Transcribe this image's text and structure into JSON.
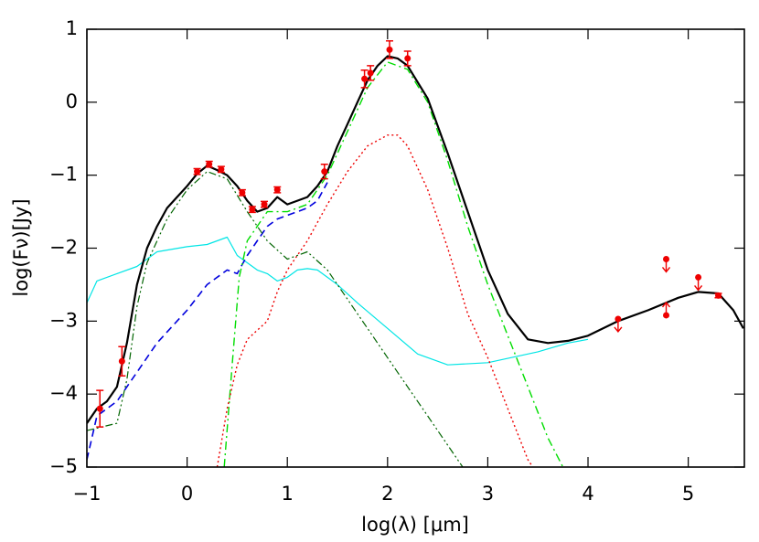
{
  "chart_data": {
    "type": "line",
    "xlabel": "log(λ) [μm]",
    "ylabel": "log(Fν)[Jy]",
    "xlim": [
      -1,
      5.56
    ],
    "ylim": [
      -5,
      1
    ],
    "xticks": [
      {
        "value": -1,
        "label": "−1"
      },
      0,
      1,
      2,
      3,
      4,
      5
    ],
    "yticks": [
      {
        "value": -5,
        "label": "−5"
      },
      {
        "value": -4,
        "label": "−4"
      },
      {
        "value": -3,
        "label": "−3"
      },
      {
        "value": -2,
        "label": "−2"
      },
      {
        "value": -1,
        "label": "−1"
      },
      0,
      1
    ],
    "series": [
      {
        "type": "line",
        "color": "#00e5e5",
        "dash": "",
        "width": 1.2,
        "x": [
          -1,
          -0.9,
          -0.7,
          -0.5,
          -0.3,
          0,
          0.2,
          0.4,
          0.5,
          0.6,
          0.7,
          0.8,
          0.9,
          1.0,
          1.1,
          1.2,
          1.3,
          1.5,
          1.7,
          2.0,
          2.3,
          2.6,
          3.0,
          3.5,
          3.8,
          4.0
        ],
        "values": [
          -2.75,
          -2.45,
          -2.35,
          -2.25,
          -2.05,
          -1.98,
          -1.95,
          -1.85,
          -2.1,
          -2.2,
          -2.3,
          -2.35,
          -2.45,
          -2.4,
          -2.3,
          -2.28,
          -2.3,
          -2.5,
          -2.75,
          -3.1,
          -3.45,
          -3.6,
          -3.57,
          -3.42,
          -3.3,
          -3.25
        ]
      },
      {
        "type": "line",
        "color": "#0000dd",
        "dash": "8 5",
        "width": 1.6,
        "x": [
          -1,
          -0.9,
          -0.7,
          -0.6,
          -0.5,
          -0.3,
          -0.1,
          0,
          0.2,
          0.4,
          0.5,
          0.6,
          0.7,
          0.8,
          0.9,
          1.0,
          1.1,
          1.2,
          1.3,
          1.4
        ],
        "values": [
          -4.9,
          -4.3,
          -4.1,
          -3.9,
          -3.7,
          -3.3,
          -3.0,
          -2.85,
          -2.5,
          -2.3,
          -2.35,
          -2.1,
          -1.9,
          -1.7,
          -1.6,
          -1.55,
          -1.5,
          -1.45,
          -1.35,
          -1.1
        ]
      },
      {
        "type": "line",
        "color": "#00dd00",
        "dash": "9 4 2 4",
        "width": 1.4,
        "x": [
          0.37,
          0.45,
          0.52,
          0.6,
          0.7,
          0.8,
          0.9,
          1.0,
          1.2,
          1.4,
          1.6,
          1.8,
          2.0,
          2.2,
          2.4,
          2.6,
          2.8,
          3.0,
          3.2,
          3.4,
          3.6,
          3.75
        ],
        "values": [
          -5,
          -3.6,
          -2.4,
          -1.9,
          -1.7,
          -1.5,
          -1.5,
          -1.5,
          -1.4,
          -1.0,
          -0.4,
          0.2,
          0.55,
          0.45,
          0.0,
          -0.8,
          -1.7,
          -2.5,
          -3.2,
          -3.9,
          -4.6,
          -5
        ]
      },
      {
        "type": "line",
        "color": "#ee0000",
        "dash": "2 3",
        "width": 1.4,
        "x": [
          0.3,
          0.4,
          0.5,
          0.6,
          0.8,
          0.9,
          1.0,
          1.2,
          1.4,
          1.6,
          1.8,
          2.0,
          2.1,
          2.2,
          2.4,
          2.6,
          2.8,
          3.0,
          3.2,
          3.4,
          3.45
        ],
        "values": [
          -5,
          -4.2,
          -3.6,
          -3.25,
          -3.0,
          -2.6,
          -2.3,
          -1.9,
          -1.4,
          -0.95,
          -0.6,
          -0.45,
          -0.45,
          -0.6,
          -1.2,
          -2.0,
          -2.9,
          -3.5,
          -4.2,
          -4.9,
          -5
        ]
      },
      {
        "type": "line",
        "color": "#006400",
        "dash": "8 3 2 3 2 3",
        "width": 1.2,
        "x": [
          -1,
          -0.7,
          -0.6,
          -0.5,
          -0.4,
          -0.2,
          0,
          0.2,
          0.4,
          0.6,
          0.8,
          1.0,
          1.2,
          1.4,
          1.6,
          1.8,
          2.0,
          2.2,
          2.4,
          2.6,
          2.75
        ],
        "values": [
          -4.5,
          -4.4,
          -3.8,
          -2.8,
          -2.2,
          -1.6,
          -1.2,
          -0.95,
          -1.05,
          -1.5,
          -1.9,
          -2.15,
          -2.05,
          -2.3,
          -2.7,
          -3.1,
          -3.5,
          -3.9,
          -4.3,
          -4.7,
          -5
        ]
      },
      {
        "type": "line",
        "color": "#000000",
        "dash": "",
        "width": 2.2,
        "x": [
          -1,
          -0.9,
          -0.8,
          -0.7,
          -0.6,
          -0.5,
          -0.4,
          -0.3,
          -0.2,
          -0.1,
          0,
          0.1,
          0.2,
          0.3,
          0.4,
          0.5,
          0.6,
          0.7,
          0.8,
          0.9,
          1.0,
          1.1,
          1.2,
          1.3,
          1.4,
          1.5,
          1.6,
          1.7,
          1.8,
          1.9,
          2.0,
          2.1,
          2.2,
          2.4,
          2.6,
          2.8,
          3.0,
          3.2,
          3.4,
          3.6,
          3.8,
          4.0,
          4.3,
          4.6,
          4.9,
          5.1,
          5.3,
          5.45,
          5.55
        ],
        "values": [
          -4.4,
          -4.2,
          -4.1,
          -3.9,
          -3.3,
          -2.5,
          -2.0,
          -1.7,
          -1.45,
          -1.3,
          -1.15,
          -0.98,
          -0.87,
          -0.93,
          -1.0,
          -1.15,
          -1.35,
          -1.5,
          -1.45,
          -1.3,
          -1.4,
          -1.35,
          -1.3,
          -1.15,
          -0.95,
          -0.6,
          -0.3,
          0.0,
          0.3,
          0.5,
          0.63,
          0.6,
          0.5,
          0.05,
          -0.7,
          -1.5,
          -2.3,
          -2.9,
          -3.25,
          -3.3,
          -3.27,
          -3.2,
          -3.0,
          -2.85,
          -2.68,
          -2.6,
          -2.62,
          -2.85,
          -3.1
        ]
      },
      {
        "type": "errorbar",
        "color": "#ee0000",
        "x": [
          -0.87,
          -0.65,
          0.1,
          0.22,
          0.34,
          0.55,
          0.65,
          0.77,
          0.9,
          1.37,
          1.77,
          1.83,
          2.02,
          2.2,
          5.3
        ],
        "values": [
          -4.2,
          -3.55,
          -0.95,
          -0.85,
          -0.92,
          -1.24,
          -1.47,
          -1.4,
          -1.2,
          -0.95,
          0.32,
          0.4,
          0.72,
          0.6,
          -2.65
        ],
        "errors": [
          0.25,
          0.2,
          0.04,
          0.04,
          0.04,
          0.04,
          0.04,
          0.04,
          0.04,
          0.1,
          0.12,
          0.1,
          0.12,
          0.1,
          0.03
        ]
      },
      {
        "type": "upper_limit",
        "color": "#ee0000",
        "x": [
          4.3,
          4.78,
          5.1
        ],
        "values": [
          -2.97,
          -2.15,
          -2.4
        ]
      },
      {
        "type": "lower_limit",
        "color": "#ee0000",
        "x": [
          4.78
        ],
        "values": [
          -2.92
        ]
      }
    ]
  }
}
